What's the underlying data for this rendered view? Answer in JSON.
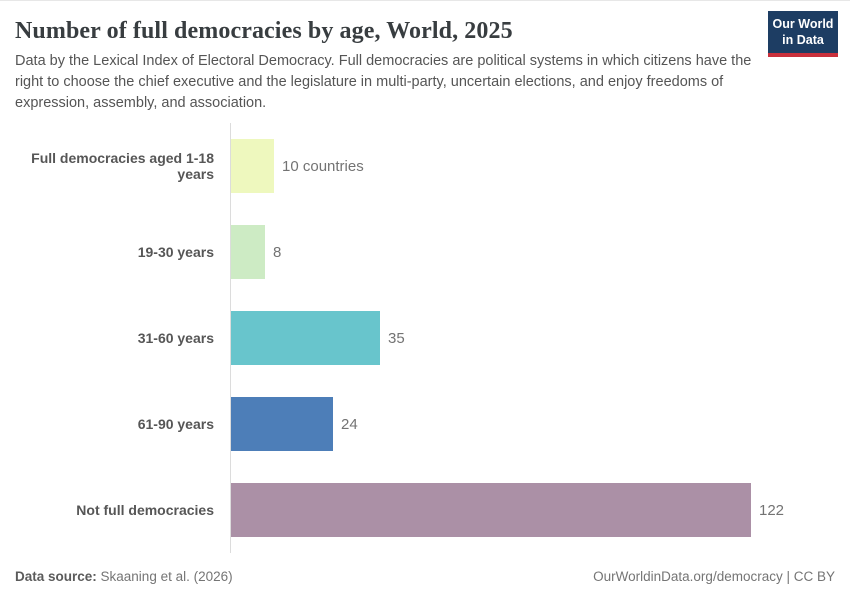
{
  "header": {
    "title": "Number of full democracies by age, World, 2025",
    "subtitle": "Data by the Lexical Index of Electoral Democracy. Full democracies are political systems in which citizens have the right to choose the chief executive and the legislature in multi-party, uncertain elections, and enjoy freedoms of expression, assembly, and association.",
    "logo": {
      "line1": "Our World",
      "line2": "in Data",
      "bg_color": "#1d3d63",
      "accent_color": "#c9303c"
    }
  },
  "chart_data": {
    "type": "bar",
    "orientation": "horizontal",
    "title": "Number of full democracies by age, World, 2025",
    "categories": [
      "Full democracies aged 1-18 years",
      "19-30 years",
      "31-60 years",
      "61-90 years",
      "Not full democracies"
    ],
    "values": [
      10,
      8,
      35,
      24,
      122
    ],
    "value_labels": [
      "10 countries",
      "8",
      "35",
      "24",
      "122"
    ],
    "bar_colors": [
      "#eef8be",
      "#cdebc4",
      "#68c5cc",
      "#4d7eb8",
      "#ab90a6"
    ],
    "xlim": [
      0,
      122
    ],
    "grid": false,
    "legend": "none",
    "axis_line_color": "#dcdcdc"
  },
  "footer": {
    "source_label": "Data source:",
    "source_value": " Skaaning et al. (2026)",
    "link": "OurWorldinData.org/democracy",
    "separator": " | ",
    "license": "CC BY"
  }
}
